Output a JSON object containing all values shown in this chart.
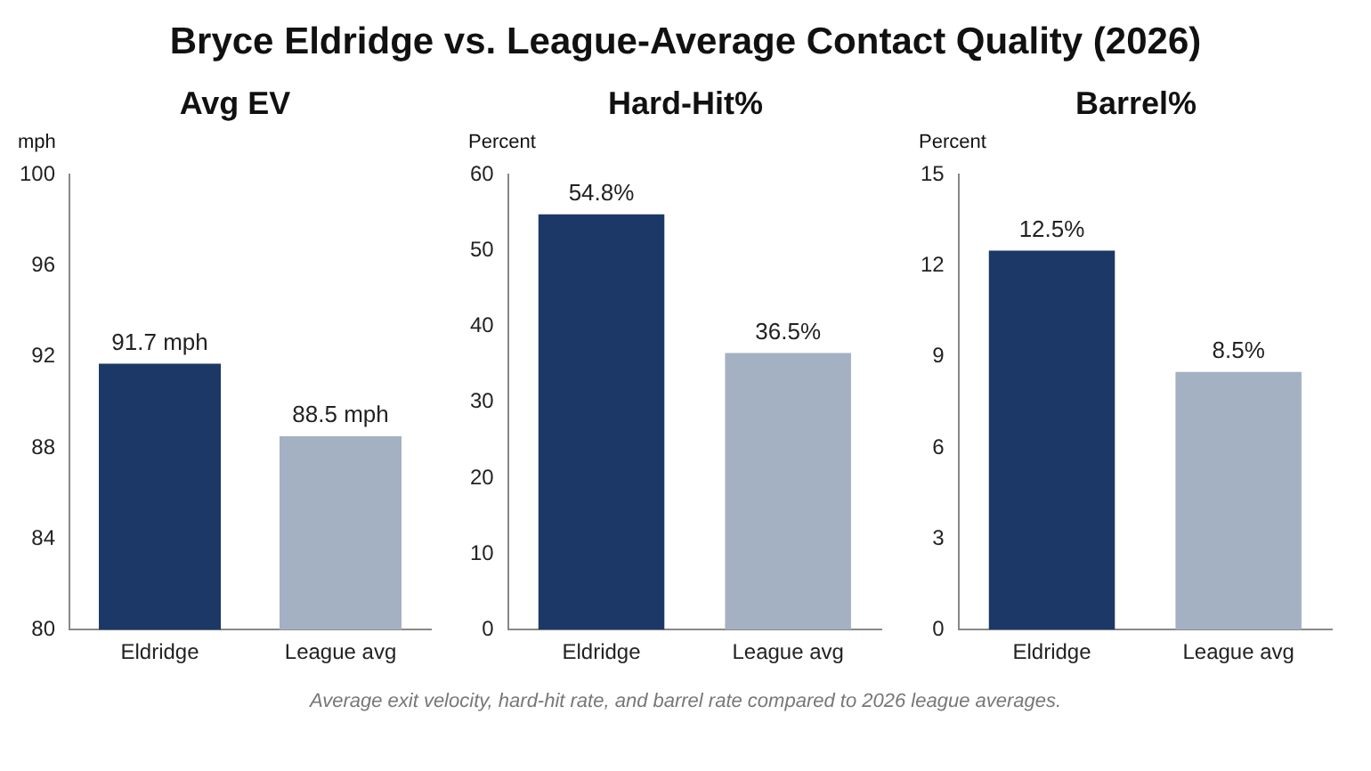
{
  "chart_data": [
    {
      "type": "bar",
      "title": "Avg EV",
      "ylabel": "mph",
      "categories": [
        "Eldridge",
        "League avg"
      ],
      "values": [
        91.7,
        88.5
      ],
      "colors": [
        "#1c3866",
        "#a4b1c2"
      ],
      "value_labels": [
        "91.7 mph",
        "88.5 mph"
      ],
      "ylim": [
        80,
        100
      ],
      "yticks": [
        80,
        84,
        88,
        92,
        96,
        100
      ],
      "grid": false,
      "annotations": [
        "Bryce Eldridge vs. League-Average Contact Quality (2026)"
      ]
    },
    {
      "type": "bar",
      "title": "Hard-Hit%",
      "ylabel": "Percent",
      "categories": [
        "Eldridge",
        "League avg"
      ],
      "values": [
        54.8,
        36.5
      ],
      "colors": [
        "#1c3866",
        "#a4b1c2"
      ],
      "value_labels": [
        "54.8%",
        "36.5%"
      ],
      "ylim": [
        0,
        60
      ],
      "yticks": [
        0,
        10,
        20,
        30,
        40,
        50,
        60
      ],
      "grid": false
    },
    {
      "type": "bar",
      "title": "Barrel%",
      "ylabel": "Percent",
      "categories": [
        "Eldridge",
        "League avg"
      ],
      "values": [
        12.5,
        8.5
      ],
      "colors": [
        "#1c3866",
        "#a4b1c2"
      ],
      "value_labels": [
        "12.5%",
        "8.5%"
      ],
      "ylim": [
        0,
        15
      ],
      "yticks": [
        0,
        3,
        6,
        9,
        12,
        15
      ],
      "grid": false,
      "annotations": [
        "Average exit velocity, hard-hit rate, and barrel rate compared to 2026 league averages."
      ]
    }
  ]
}
